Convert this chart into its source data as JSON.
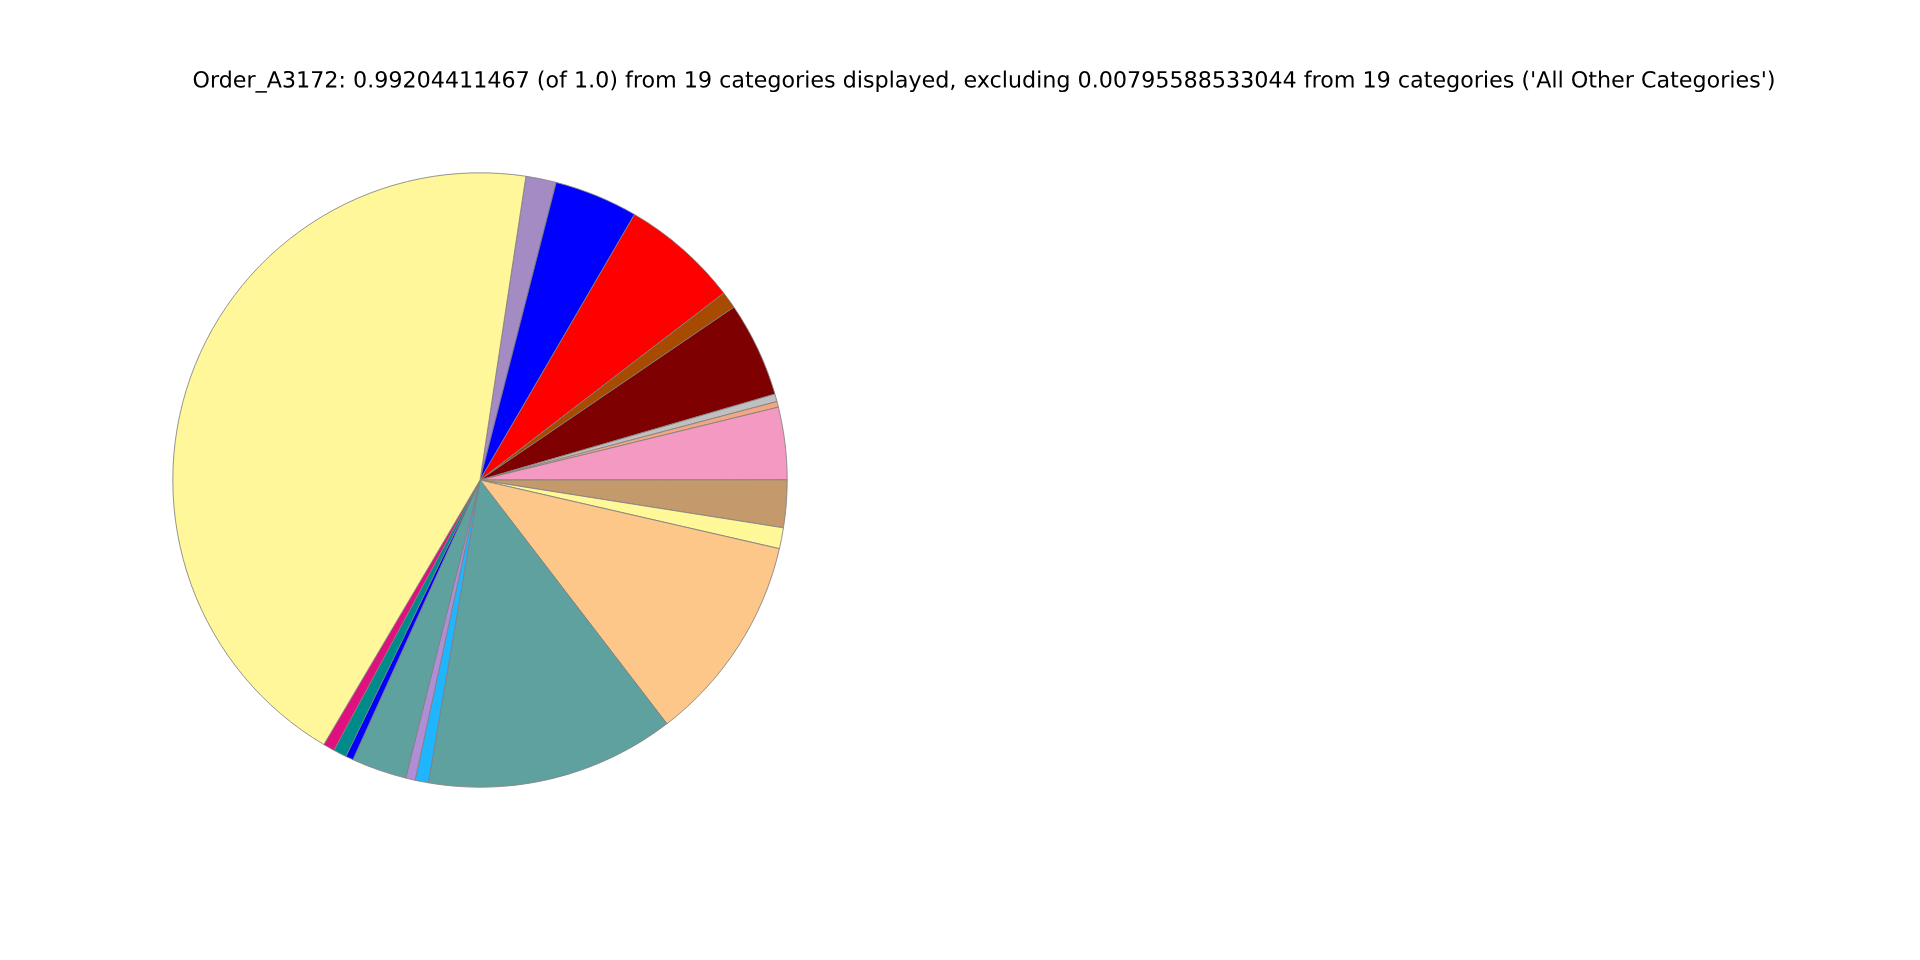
{
  "chart_data": {
    "type": "pie",
    "title": "Order_A3172: 0.99204411467 (of 1.0) from 19 categories displayed, excluding 0.00795588533044 from 19 categories ('All Other Categories')",
    "categories": [
      null,
      null,
      null,
      null,
      null,
      null,
      null,
      null,
      null,
      null,
      null,
      null,
      null,
      null,
      null,
      null,
      null,
      null,
      null
    ],
    "values": [
      1.6,
      4.4,
      6.2,
      0.9,
      5.0,
      0.4,
      0.3,
      3.8,
      2.5,
      1.1,
      11.0,
      13.1,
      0.7,
      0.5,
      2.9,
      0.4,
      0.7,
      0.6,
      43.9
    ],
    "colors": [
      "#a58bc4",
      "#0000ff",
      "#ff0000",
      "#a64b00",
      "#7f0000",
      "#c0c0c0",
      "#f4a582",
      "#f49ac2",
      "#c49a6c",
      "#fff899",
      "#fdc78a",
      "#5fa19e",
      "#1fb5ff",
      "#b08ed6",
      "#5fa19e",
      "#0000ff",
      "#008b8b",
      "#e0107e",
      "#fff799"
    ]
  }
}
